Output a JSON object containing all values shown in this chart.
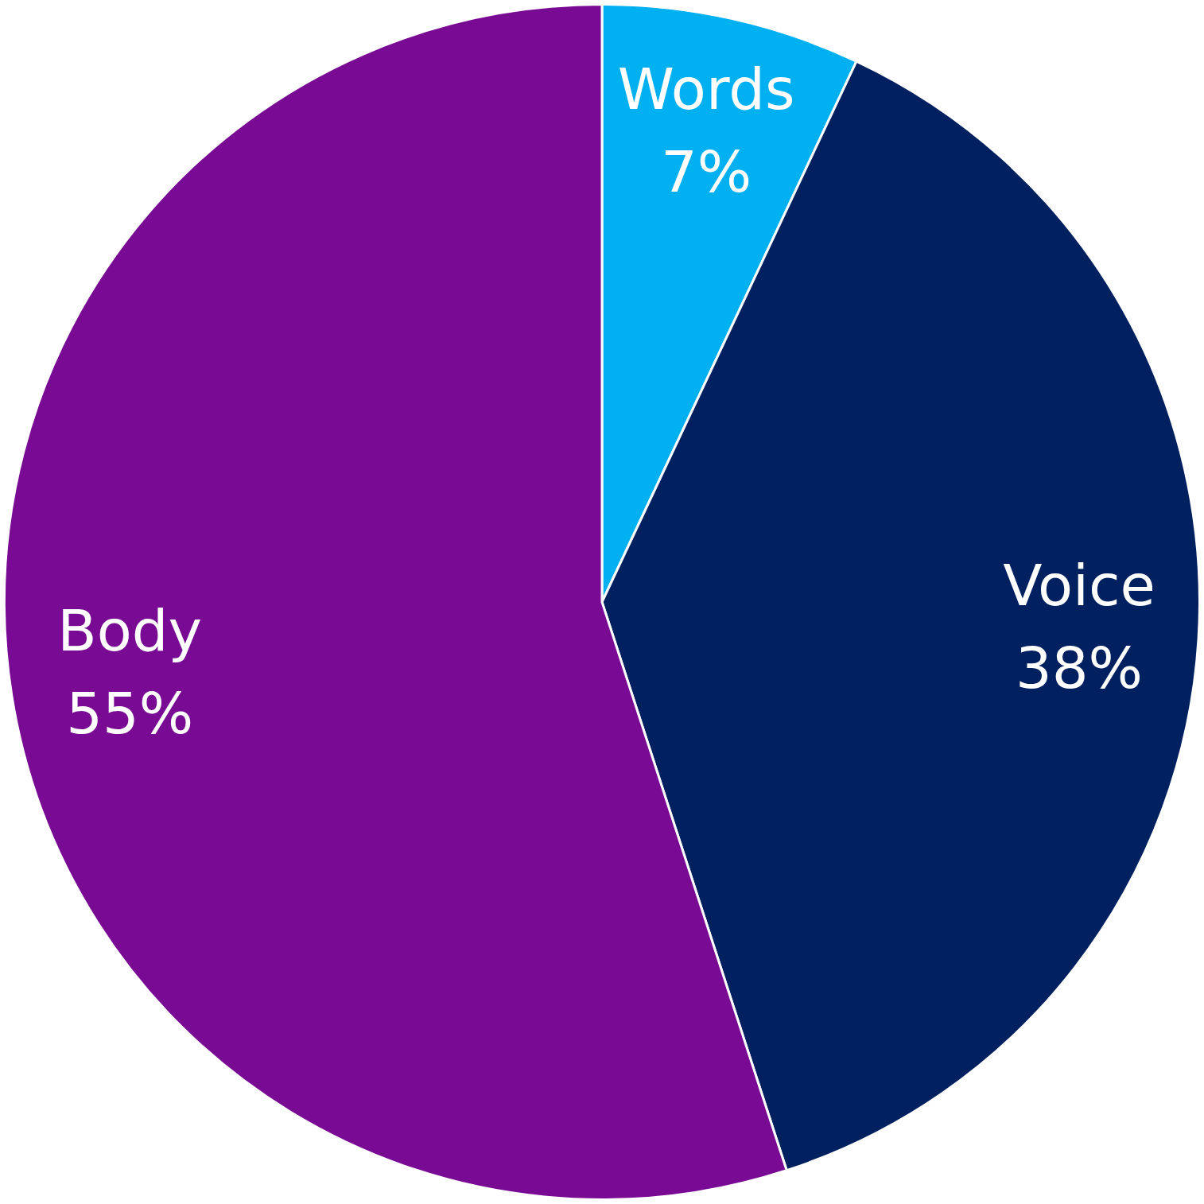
{
  "chart_data": {
    "type": "pie",
    "categories": [
      "Words",
      "Voice",
      "Body"
    ],
    "values": [
      7,
      38,
      55
    ],
    "colors": [
      "#00b0f0",
      "#002060",
      "#780a94"
    ],
    "value_labels": [
      "7%",
      "38%",
      "55%"
    ],
    "legend": false
  }
}
